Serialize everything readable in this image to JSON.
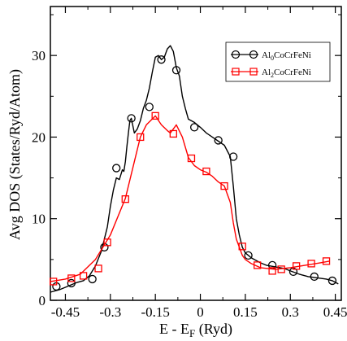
{
  "chart_data": {
    "type": "line",
    "xlabel": "E - E",
    "xlabel_sub": "F",
    "xlabel_unit": " (Ryd)",
    "ylabel": "Avg DOS (States/Ryd/Atom)",
    "xlim": [
      -0.5,
      0.47
    ],
    "ylim": [
      0,
      36
    ],
    "xticks": [
      -0.45,
      -0.3,
      -0.15,
      0,
      0.15,
      0.3,
      0.45
    ],
    "xtick_labels": [
      "-0.45",
      "-0.3",
      "-0.15",
      "0",
      "0.15",
      "0.3",
      "0.45"
    ],
    "yticks": [
      0,
      10,
      20,
      30
    ],
    "ytick_labels": [
      "0",
      "10",
      "20",
      "30"
    ],
    "legend_position": "top-right",
    "series": [
      {
        "name_parts": [
          "Al",
          "0",
          "CoCrFeNi"
        ],
        "color": "#000000",
        "marker": "circle",
        "x": [
          -0.5,
          -0.47,
          -0.45,
          -0.43,
          -0.41,
          -0.39,
          -0.37,
          -0.35,
          -0.33,
          -0.31,
          -0.3,
          -0.29,
          -0.28,
          -0.27,
          -0.26,
          -0.255,
          -0.25,
          -0.245,
          -0.24,
          -0.235,
          -0.23,
          -0.22,
          -0.21,
          -0.2,
          -0.19,
          -0.18,
          -0.17,
          -0.16,
          -0.15,
          -0.14,
          -0.13,
          -0.12,
          -0.11,
          -0.1,
          -0.09,
          -0.08,
          -0.07,
          -0.06,
          -0.05,
          -0.04,
          -0.03,
          -0.02,
          -0.01,
          0.0,
          0.02,
          0.04,
          0.06,
          0.08,
          0.1,
          0.11,
          0.12,
          0.13,
          0.14,
          0.15,
          0.16,
          0.17,
          0.18,
          0.2,
          0.22,
          0.25,
          0.28,
          0.3,
          0.33,
          0.36,
          0.38,
          0.4,
          0.42,
          0.44,
          0.46
        ],
        "values": [
          1.0,
          1.3,
          1.6,
          1.9,
          2.2,
          2.4,
          3.0,
          4.2,
          6.0,
          9.0,
          11.5,
          13.5,
          15.0,
          14.8,
          16.0,
          15.8,
          17.0,
          18.8,
          20.5,
          22.0,
          22.3,
          20.5,
          21.0,
          22.0,
          23.5,
          24.5,
          26.0,
          28.0,
          29.8,
          30.0,
          29.5,
          29.8,
          30.8,
          31.2,
          30.5,
          28.5,
          27.5,
          25.0,
          23.5,
          22.2,
          22.0,
          21.8,
          21.5,
          21.2,
          20.5,
          20.0,
          19.5,
          19.0,
          17.6,
          14.0,
          10.0,
          8.0,
          6.5,
          5.8,
          5.5,
          5.2,
          5.0,
          4.6,
          4.3,
          4.1,
          3.9,
          3.6,
          3.2,
          2.9,
          2.8,
          2.7,
          2.6,
          2.4,
          2.0
        ],
        "marker_x": [
          -0.48,
          -0.43,
          -0.36,
          -0.32,
          -0.28,
          -0.23,
          -0.17,
          -0.13,
          -0.08,
          -0.02,
          0.06,
          0.11,
          0.16,
          0.24,
          0.31,
          0.38,
          0.44
        ],
        "marker_values": [
          1.7,
          2.1,
          2.6,
          6.5,
          16.2,
          22.3,
          23.7,
          29.5,
          28.2,
          21.2,
          19.6,
          17.6,
          5.5,
          4.3,
          3.5,
          2.9,
          2.4
        ]
      },
      {
        "name_parts": [
          "Al",
          "2",
          "CoCrFeNi"
        ],
        "color": "#ff0000",
        "marker": "square",
        "x": [
          -0.5,
          -0.45,
          -0.4,
          -0.35,
          -0.3,
          -0.25,
          -0.2,
          -0.18,
          -0.15,
          -0.13,
          -0.11,
          -0.1,
          -0.08,
          -0.06,
          -0.04,
          -0.02,
          0.0,
          0.02,
          0.04,
          0.06,
          0.08,
          0.1,
          0.11,
          0.12,
          0.13,
          0.14,
          0.15,
          0.17,
          0.2,
          0.25,
          0.3,
          0.35,
          0.4,
          0.43
        ],
        "values": [
          2.3,
          2.6,
          3.2,
          5.0,
          8.0,
          12.5,
          20.0,
          21.5,
          22.6,
          21.5,
          20.8,
          20.5,
          21.5,
          20.0,
          17.5,
          16.5,
          16.0,
          15.7,
          15.2,
          14.5,
          14.0,
          12.0,
          9.5,
          7.5,
          6.5,
          5.5,
          5.0,
          4.5,
          4.0,
          3.8,
          4.0,
          4.3,
          4.6,
          4.8
        ],
        "marker_x": [
          -0.49,
          -0.43,
          -0.39,
          -0.34,
          -0.31,
          -0.25,
          -0.2,
          -0.15,
          -0.09,
          -0.03,
          0.02,
          0.08,
          0.14,
          0.19,
          0.24,
          0.27,
          0.32,
          0.37,
          0.42
        ],
        "marker_values": [
          2.3,
          2.7,
          3.0,
          3.9,
          7.1,
          12.4,
          20.0,
          22.6,
          20.4,
          17.4,
          15.8,
          14.0,
          6.6,
          4.3,
          3.6,
          3.8,
          4.2,
          4.5,
          4.8
        ]
      }
    ]
  }
}
